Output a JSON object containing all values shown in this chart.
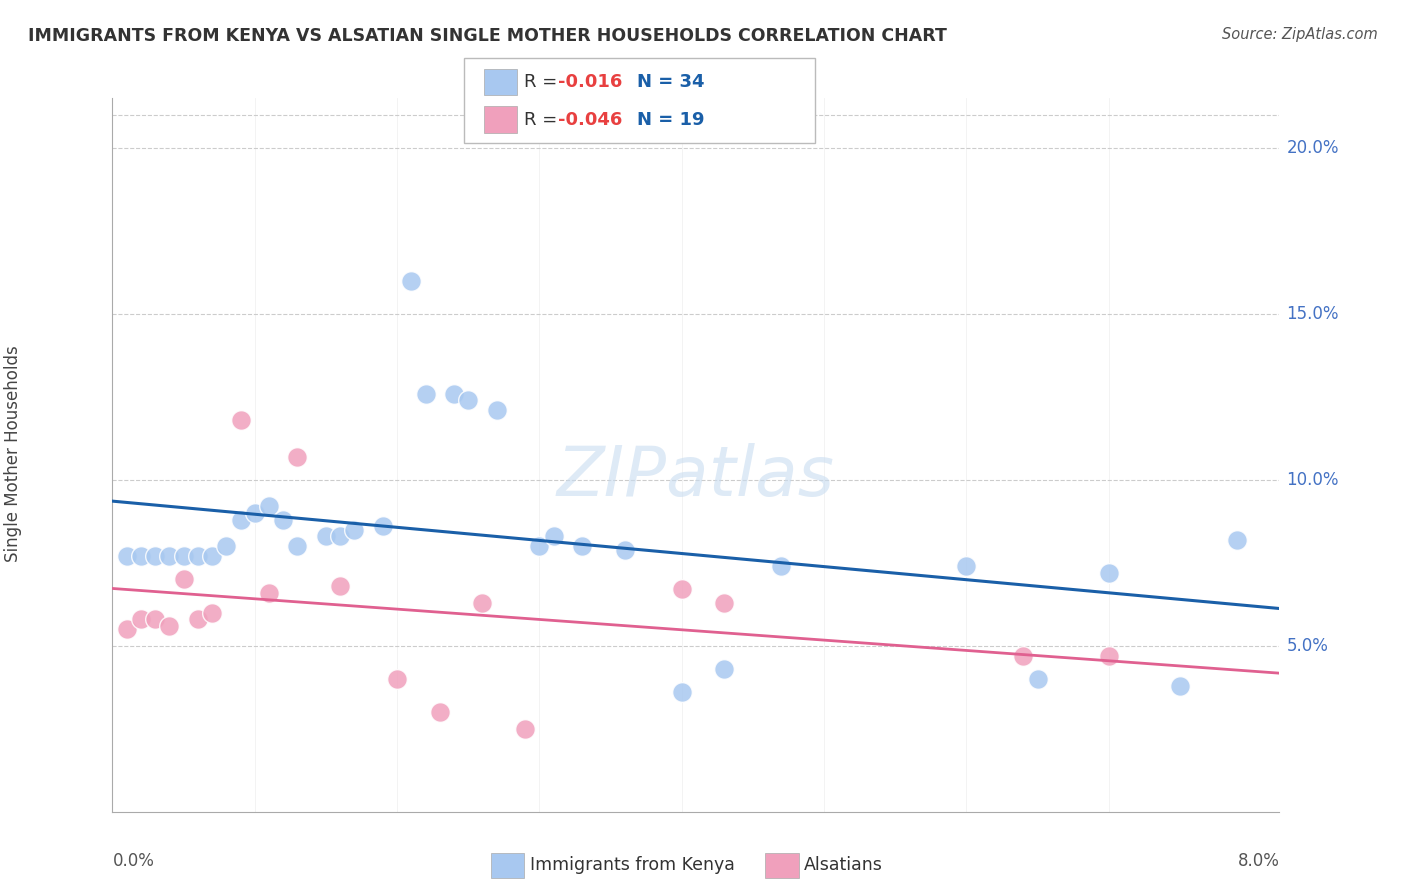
{
  "title": "IMMIGRANTS FROM KENYA VS ALSATIAN SINGLE MOTHER HOUSEHOLDS CORRELATION CHART",
  "source": "Source: ZipAtlas.com",
  "ylabel": "Single Mother Households",
  "legend_label1": "Immigrants from Kenya",
  "legend_label2": "Alsatians",
  "watermark": "ZIPatlas",
  "blue_color": "#A8C8F0",
  "pink_color": "#F0A0BC",
  "trendline_blue": "#1A5FA8",
  "trendline_pink": "#E06090",
  "xlim": [
    0.0,
    0.082
  ],
  "ylim": [
    0.0,
    0.215
  ],
  "kenya_x": [
    0.001,
    0.002,
    0.003,
    0.004,
    0.005,
    0.006,
    0.007,
    0.008,
    0.009,
    0.01,
    0.011,
    0.012,
    0.013,
    0.015,
    0.016,
    0.017,
    0.019,
    0.021,
    0.022,
    0.024,
    0.025,
    0.027,
    0.03,
    0.031,
    0.033,
    0.036,
    0.04,
    0.043,
    0.047,
    0.06,
    0.065,
    0.07,
    0.075,
    0.079
  ],
  "kenya_y": [
    0.077,
    0.077,
    0.077,
    0.077,
    0.077,
    0.077,
    0.077,
    0.08,
    0.088,
    0.09,
    0.092,
    0.088,
    0.08,
    0.083,
    0.083,
    0.085,
    0.086,
    0.16,
    0.126,
    0.126,
    0.124,
    0.121,
    0.08,
    0.083,
    0.08,
    0.079,
    0.036,
    0.043,
    0.074,
    0.074,
    0.04,
    0.072,
    0.038,
    0.082
  ],
  "alsatian_x": [
    0.001,
    0.002,
    0.003,
    0.004,
    0.005,
    0.006,
    0.007,
    0.009,
    0.011,
    0.013,
    0.016,
    0.02,
    0.023,
    0.026,
    0.029,
    0.04,
    0.043,
    0.064,
    0.07
  ],
  "alsatian_y": [
    0.055,
    0.058,
    0.058,
    0.056,
    0.07,
    0.058,
    0.06,
    0.118,
    0.066,
    0.107,
    0.068,
    0.04,
    0.03,
    0.063,
    0.025,
    0.067,
    0.063,
    0.047,
    0.047
  ]
}
